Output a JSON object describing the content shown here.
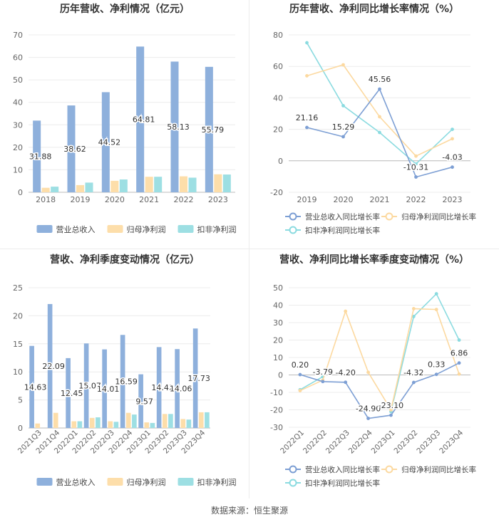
{
  "footer": "数据来源：恒生聚源",
  "chart_data": [
    {
      "type": "bar",
      "title": "历年营收、净利情况（亿元）",
      "categories": [
        "2018",
        "2019",
        "2020",
        "2021",
        "2022",
        "2023"
      ],
      "ylim": [
        0,
        70
      ],
      "yticks": [
        0,
        10,
        20,
        30,
        40,
        50,
        60,
        70
      ],
      "series": [
        {
          "name": "营业总收入",
          "color": "#8eb0dc",
          "values": [
            31.88,
            38.62,
            44.52,
            64.81,
            58.13,
            55.79
          ],
          "labels": [
            "31.88",
            "38.62",
            "44.52",
            "64.81",
            "58.13",
            "55.79"
          ]
        },
        {
          "name": "归母净利润",
          "color": "#fddeaa",
          "values": [
            2.0,
            3.2,
            5.1,
            6.9,
            7.1,
            8.0
          ]
        },
        {
          "name": "扣非净利润",
          "color": "#9ddfe3",
          "values": [
            2.5,
            4.3,
            5.7,
            6.9,
            6.5,
            7.9
          ]
        }
      ],
      "grid": true,
      "legend": "bottom"
    },
    {
      "type": "line",
      "title": "历年营收、净利同比增长率情况（%）",
      "categories": [
        "2019",
        "2020",
        "2021",
        "2022",
        "2023"
      ],
      "ylim": [
        -20,
        80
      ],
      "yticks": [
        -20,
        0,
        20,
        40,
        60,
        80
      ],
      "series": [
        {
          "name": "营业总收入同比增长率",
          "color": "#7d9fd4",
          "values": [
            21.16,
            15.29,
            45.56,
            -10.31,
            -4.03
          ],
          "labels": [
            "21.16",
            "15.29",
            "45.56",
            "-10.31",
            "-4.03"
          ]
        },
        {
          "name": "归母净利润同比增长率",
          "color": "#fcd9a0",
          "values": [
            54,
            61,
            28,
            3,
            14
          ]
        },
        {
          "name": "扣非净利润同比增长率",
          "color": "#8bdbe0",
          "values": [
            75,
            35,
            18,
            -2,
            20
          ]
        }
      ],
      "grid": true,
      "legend": "bottom"
    },
    {
      "type": "bar",
      "title": "营收、净利季度变动情况（亿元）",
      "categories": [
        "2021Q3",
        "2021Q4",
        "2022Q1",
        "2022Q2",
        "2022Q3",
        "2022Q4",
        "2023Q1",
        "2023Q2",
        "2023Q3",
        "2023Q4"
      ],
      "ylim": [
        0,
        25
      ],
      "yticks": [
        0,
        5,
        10,
        15,
        20,
        25
      ],
      "series": [
        {
          "name": "营业总收入",
          "color": "#8eb0dc",
          "values": [
            14.63,
            22.09,
            12.45,
            15.07,
            14.01,
            16.59,
            9.57,
            14.42,
            14.06,
            17.73
          ],
          "labels": [
            "14.63",
            "22.09",
            "12.45",
            "15.07",
            "14.01",
            "16.59",
            "9.57",
            "14.42",
            "14.06",
            "17.73"
          ]
        },
        {
          "name": "归母净利润",
          "color": "#fddeaa",
          "values": [
            0.8,
            2.7,
            1.2,
            1.8,
            1.2,
            2.7,
            1.0,
            2.5,
            1.6,
            2.8
          ]
        },
        {
          "name": "扣非净利润",
          "color": "#9ddfe3",
          "values": [
            0,
            0,
            1.2,
            1.9,
            1.1,
            2.4,
            0.9,
            2.5,
            1.5,
            2.8
          ]
        }
      ],
      "grid": true,
      "legend": "bottom"
    },
    {
      "type": "line",
      "title": "营收、净利同比增长率季度变动情况（%）",
      "categories": [
        "2022Q1",
        "2022Q2",
        "2022Q3",
        "2022Q4",
        "2023Q1",
        "2023Q2",
        "2023Q3",
        "2023Q4"
      ],
      "ylim": [
        -30,
        50
      ],
      "yticks": [
        -30,
        -20,
        -10,
        0,
        10,
        20,
        30,
        40,
        50
      ],
      "series": [
        {
          "name": "营业总收入同比增长率",
          "color": "#7d9fd4",
          "values": [
            0.2,
            -3.79,
            -4.2,
            -24.9,
            -23.1,
            -4.32,
            0.33,
            6.86
          ],
          "labels": [
            "0.20",
            "-3.79",
            "-4.20",
            "-24.90",
            "-23.10",
            "-4.32",
            "0.33",
            "6.86"
          ]
        },
        {
          "name": "归母净利润同比增长率",
          "color": "#fcd9a0",
          "values": [
            -9,
            -3,
            36.5,
            1.5,
            -20,
            38,
            37.5,
            0.5
          ]
        },
        {
          "name": "扣非净利润同比增长率",
          "color": "#8bdbe0",
          "values": [
            -8.5,
            -1,
            null,
            null,
            -21,
            33.5,
            46.5,
            20
          ]
        }
      ],
      "grid": true,
      "legend": "bottom"
    }
  ]
}
